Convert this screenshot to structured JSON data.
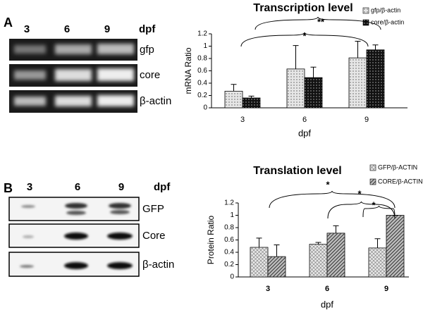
{
  "panel_labels": [
    "A",
    "B"
  ],
  "gels": [
    {
      "lanes": [
        "3",
        "6",
        "9"
      ],
      "unit": "dpf",
      "rows": [
        "gfp",
        "core",
        "β-actin"
      ]
    },
    {
      "lanes": [
        "3",
        "6",
        "9"
      ],
      "unit": "dpf",
      "rows": [
        "GFP",
        "Core",
        "β-actin"
      ]
    }
  ],
  "chart_data": [
    {
      "type": "bar",
      "title": "Transcription level",
      "x_label": "dpf",
      "y_label": "mRNA Ratio",
      "categories": [
        "3",
        "6",
        "9"
      ],
      "series": [
        {
          "name": "gfp/β-actin",
          "color": "#e6e6e6",
          "values": [
            0.27,
            0.63,
            0.81
          ],
          "errors": [
            0.11,
            0.38,
            0.27
          ]
        },
        {
          "name": "core/β-actin",
          "color": "#111111",
          "values": [
            0.16,
            0.49,
            0.94
          ],
          "errors": [
            0.03,
            0.17,
            0.08
          ]
        }
      ],
      "ylim": [
        0,
        1.2
      ],
      "yticks": [
        0,
        0.2,
        0.4,
        0.6,
        0.8,
        1,
        1.2
      ],
      "annotations": [
        "*",
        "**"
      ]
    },
    {
      "type": "bar",
      "title": "Translation level",
      "x_label": "dpf",
      "y_label": "Protein Ratio",
      "categories": [
        "3",
        "6",
        "9"
      ],
      "series": [
        {
          "name": "GFP/β-ACTIN",
          "color": "#e8e8e8",
          "values": [
            0.48,
            0.53,
            0.47
          ],
          "errors": [
            0.15,
            0.03,
            0.15
          ]
        },
        {
          "name": "CORE/β-ACTIN",
          "color": "#bdbdbd",
          "values": [
            0.33,
            0.71,
            1.0
          ],
          "errors": [
            0.19,
            0.12,
            0.0
          ]
        }
      ],
      "ylim": [
        0,
        1.2
      ],
      "yticks": [
        0,
        0.2,
        0.4,
        0.6,
        0.8,
        1,
        1.2
      ],
      "annotations": [
        "*",
        "*",
        "*"
      ]
    }
  ]
}
